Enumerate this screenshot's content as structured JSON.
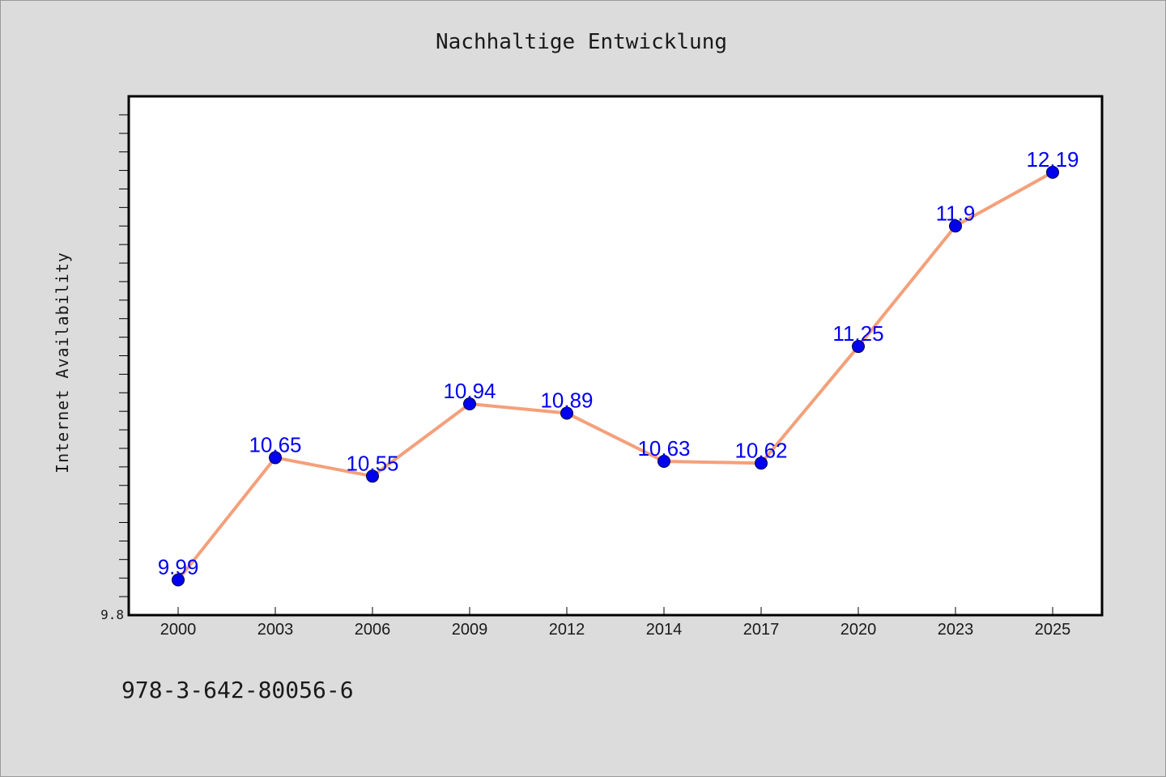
{
  "chart_data": {
    "type": "line",
    "title": "Nachhaltige Entwicklung",
    "xlabel": "",
    "ylabel": "Internet Availability",
    "categories": [
      "2000",
      "2003",
      "2006",
      "2009",
      "2012",
      "2014",
      "2017",
      "2020",
      "2023",
      "2025"
    ],
    "series": [
      {
        "values": [
          9.99,
          10.65,
          10.55,
          10.94,
          10.89,
          10.63,
          10.62,
          11.25,
          11.9,
          12.19
        ],
        "data_labels": [
          "9.99",
          "10.65",
          "10.55",
          "10.94",
          "10.89",
          "10.63",
          "10.62",
          "11.25",
          "11.9",
          "12.19"
        ]
      }
    ],
    "ylim": [
      9.8,
      12.6
    ],
    "ytick_labels": [
      {
        "value": 9.8,
        "label": "9.8"
      }
    ],
    "grid": false,
    "legend": "none",
    "colors": {
      "line": "#f4a07a",
      "marker": "#0000ee",
      "label": "#0000ee",
      "plot_bg": "#ffffff",
      "page_bg": "#dcdcdc"
    }
  },
  "footer": {
    "isbn": "978-3-642-80056-6"
  }
}
